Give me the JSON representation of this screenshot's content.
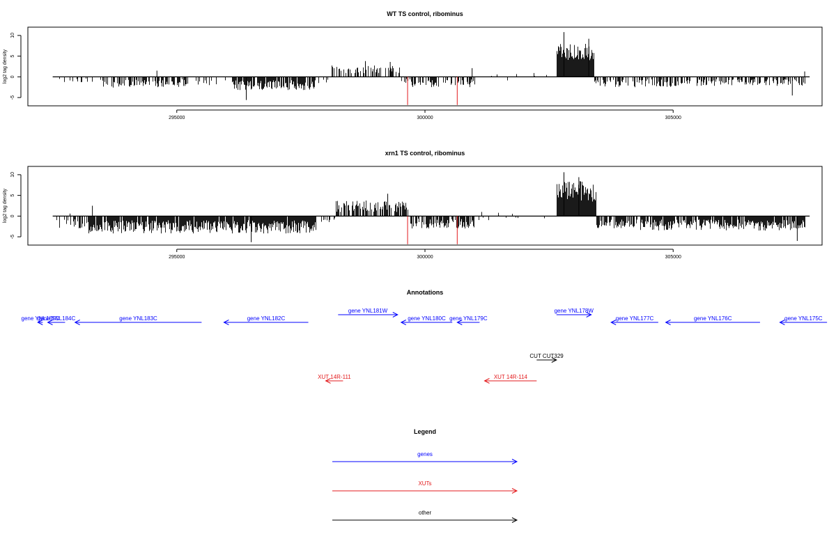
{
  "chart_data": [
    {
      "type": "bar",
      "title": "WT TS control, ribominus",
      "ylabel": "log2 tag density",
      "xlabel": "",
      "xlim": [
        292000,
        308000
      ],
      "ylim": [
        -7,
        12
      ],
      "track_start": 292500,
      "track_end": 307750,
      "x_ticks": [
        295000,
        300000,
        305000
      ],
      "x_tick_labels": [
        "295000",
        "300000",
        "305000"
      ],
      "y_ticks": [
        -5,
        0,
        5,
        10
      ],
      "y_tick_labels": [
        "-5",
        "0",
        "5",
        "10"
      ],
      "grid": false,
      "markers": [
        {
          "x": 299650,
          "ymin": -6.8,
          "ymax": 0,
          "color": "#e31a1c"
        },
        {
          "x": 300650,
          "ymin": -6.8,
          "ymax": 0,
          "color": "#e31a1c"
        }
      ],
      "segments": [
        {
          "x": [
            292550,
            293450
          ],
          "range": [
            -1.3,
            -0.4
          ],
          "density": 0.15
        },
        {
          "x": [
            293450,
            295200
          ],
          "range": [
            -2.6,
            -0.6
          ],
          "density": 0.55
        },
        {
          "x": [
            295200,
            296100
          ],
          "range": [
            -2.0,
            -0.5
          ],
          "density": 0.2
        },
        {
          "x": [
            296100,
            297800
          ],
          "range": [
            -3.2,
            -0.8
          ],
          "density": 0.85
        },
        {
          "x": [
            297800,
            298100
          ],
          "range": [
            -1.5,
            -0.5
          ],
          "density": 0.2
        },
        {
          "x": [
            298100,
            299500
          ],
          "range": [
            0.8,
            2.8
          ],
          "density": 0.45
        },
        {
          "x": [
            299500,
            299700
          ],
          "range": [
            -1.5,
            -0.5
          ],
          "density": 0.4
        },
        {
          "x": [
            299700,
            301000
          ],
          "range": [
            -2.5,
            -0.5
          ],
          "density": 0.5
        },
        {
          "x": [
            301000,
            302600
          ],
          "range": [
            -1.0,
            1.2
          ],
          "density": 0.08
        },
        {
          "x": [
            302650,
            303400
          ],
          "range": [
            4.0,
            8.0
          ],
          "density": 1.0
        },
        {
          "x": [
            303400,
            305000
          ],
          "range": [
            -2.5,
            -0.6
          ],
          "density": 0.5
        },
        {
          "x": [
            305000,
            307650
          ],
          "range": [
            -2.2,
            -0.5
          ],
          "density": 0.45
        }
      ],
      "peaks": [
        {
          "x": 294600,
          "y": 1.5
        },
        {
          "x": 296400,
          "y": -5.6
        },
        {
          "x": 298800,
          "y": 3.8
        },
        {
          "x": 299300,
          "y": 3.6
        },
        {
          "x": 300950,
          "y": 2.1
        },
        {
          "x": 302800,
          "y": 10.8
        },
        {
          "x": 303300,
          "y": 9.2
        },
        {
          "x": 307400,
          "y": -4.5
        },
        {
          "x": 307650,
          "y": 1.3
        }
      ]
    },
    {
      "type": "bar",
      "title": "xrn1 TS control, ribominus",
      "ylabel": "log2 tag density",
      "xlabel": "",
      "xlim": [
        292000,
        308000
      ],
      "ylim": [
        -7,
        12
      ],
      "track_start": 292500,
      "track_end": 307750,
      "x_ticks": [
        295000,
        300000,
        305000
      ],
      "x_tick_labels": [
        "295000",
        "300000",
        "305000"
      ],
      "y_ticks": [
        -5,
        0,
        5,
        10
      ],
      "y_tick_labels": [
        "-5",
        "0",
        "5",
        "10"
      ],
      "grid": false,
      "markers": [
        {
          "x": 299650,
          "ymin": -6.8,
          "ymax": 0,
          "color": "#e31a1c"
        },
        {
          "x": 300650,
          "ymin": -6.8,
          "ymax": 0,
          "color": "#e31a1c"
        }
      ],
      "segments": [
        {
          "x": [
            292550,
            293200
          ],
          "range": [
            -3.5,
            -0.8
          ],
          "density": 0.45
        },
        {
          "x": [
            293200,
            297800
          ],
          "range": [
            -4.2,
            -1.0
          ],
          "density": 0.95
        },
        {
          "x": [
            297800,
            298200
          ],
          "range": [
            -1.5,
            -0.5
          ],
          "density": 0.25
        },
        {
          "x": [
            298200,
            299700
          ],
          "range": [
            1.0,
            3.8
          ],
          "density": 0.75
        },
        {
          "x": [
            299700,
            301000
          ],
          "range": [
            -3.0,
            -0.6
          ],
          "density": 0.65
        },
        {
          "x": [
            301000,
            302600
          ],
          "range": [
            -1.0,
            1.2
          ],
          "density": 0.08
        },
        {
          "x": [
            302650,
            303450
          ],
          "range": [
            3.5,
            8.5
          ],
          "density": 1.0
        },
        {
          "x": [
            303450,
            304300
          ],
          "range": [
            -3.0,
            -0.8
          ],
          "density": 0.7
        },
        {
          "x": [
            304300,
            307650
          ],
          "range": [
            -3.5,
            -0.8
          ],
          "density": 0.8
        }
      ],
      "peaks": [
        {
          "x": 292850,
          "y": 0.6
        },
        {
          "x": 293300,
          "y": 2.5
        },
        {
          "x": 296500,
          "y": -6.3
        },
        {
          "x": 299250,
          "y": 5.4
        },
        {
          "x": 302800,
          "y": 10.6
        },
        {
          "x": 303100,
          "y": 9.4
        },
        {
          "x": 307500,
          "y": -6.0
        }
      ]
    }
  ],
  "annotations": {
    "title": "Annotations",
    "items": [
      {
        "label": "gene YNL185C",
        "x_start": 292300,
        "x_end": 292200,
        "row": 1,
        "color": "#0000ff"
      },
      {
        "label": "gene YNL184C",
        "x_start": 292750,
        "x_end": 292400,
        "row": 1,
        "color": "#0000ff"
      },
      {
        "label": "gene YNL183C",
        "x_start": 295500,
        "x_end": 292950,
        "row": 1,
        "color": "#0000ff"
      },
      {
        "label": "gene YNL182C",
        "x_start": 297650,
        "x_end": 295950,
        "row": 1,
        "color": "#0000ff"
      },
      {
        "label": "gene YNL181W",
        "x_start": 298250,
        "x_end": 299450,
        "row": 0,
        "color": "#0000ff"
      },
      {
        "label": "gene YNL180C",
        "x_start": 300550,
        "x_end": 299520,
        "row": 1,
        "color": "#0000ff"
      },
      {
        "label": "gene YNL179C",
        "x_start": 301100,
        "x_end": 300650,
        "row": 1,
        "color": "#0000ff"
      },
      {
        "label": "gene YNL178W",
        "x_start": 302650,
        "x_end": 303350,
        "row": 0,
        "color": "#0000ff"
      },
      {
        "label": "gene YNL177C",
        "x_start": 304700,
        "x_end": 303750,
        "row": 1,
        "color": "#0000ff"
      },
      {
        "label": "gene YNL176C",
        "x_start": 306750,
        "x_end": 304850,
        "row": 1,
        "color": "#0000ff"
      },
      {
        "label": "gene YNL175C",
        "x_start": 308100,
        "x_end": 307150,
        "row": 1,
        "color": "#0000ff"
      },
      {
        "label": "CUT CUT329",
        "x_start": 302250,
        "x_end": 302650,
        "row": 2,
        "color": "#000000"
      },
      {
        "label": "XUT 14R-111",
        "x_start": 298350,
        "x_end": 298000,
        "row": 3,
        "color": "#e31a1c"
      },
      {
        "label": "XUT 14R-114",
        "x_start": 302250,
        "x_end": 301200,
        "row": 3,
        "color": "#e31a1c"
      }
    ]
  },
  "legend": {
    "title": "Legend",
    "entries": [
      {
        "label": "genes",
        "color": "#0000ff"
      },
      {
        "label": "XUTs",
        "color": "#e31a1c"
      },
      {
        "label": "other",
        "color": "#000000"
      }
    ]
  }
}
